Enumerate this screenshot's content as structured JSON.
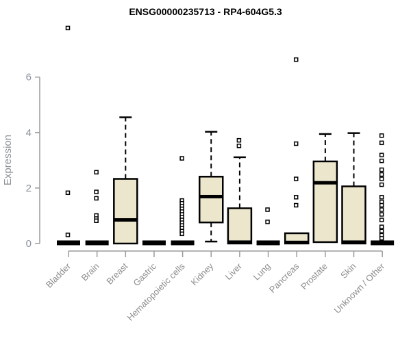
{
  "chart_data": {
    "type": "boxplot",
    "title": "ENSG00000235713 - RP4-604G5.3",
    "ylabel": "Expression",
    "xlabel": "",
    "ylim": [
      0,
      6
    ],
    "yticks": [
      0,
      2,
      4,
      6
    ],
    "grid": false,
    "legend": null,
    "categories": [
      "Bladder",
      "Brain",
      "Breast",
      "Gastric",
      "Hematopoietic cells",
      "Kidney",
      "Liver",
      "Lung",
      "Pancreas",
      "Prostate",
      "Skin",
      "Unknown / Other"
    ],
    "boxes": [
      {
        "category": "Bladder",
        "type": "flat",
        "q1": 0,
        "median": 0,
        "q3": 0,
        "whisker_low": null,
        "whisker_high": null,
        "outliers": [
          7.77,
          1.83,
          0.31
        ]
      },
      {
        "category": "Brain",
        "type": "flat",
        "q1": 0,
        "median": 0,
        "q3": 0,
        "whisker_low": null,
        "whisker_high": null,
        "outliers": [
          2.57,
          1.86,
          1.63,
          1.01,
          0.9,
          0.82
        ]
      },
      {
        "category": "Breast",
        "type": "box",
        "q1": 0,
        "median": 0.85,
        "q3": 2.33,
        "whisker_low": null,
        "whisker_high": 4.55,
        "outliers": []
      },
      {
        "category": "Gastric",
        "type": "flat",
        "q1": 0,
        "median": 0,
        "q3": 0,
        "whisker_low": null,
        "whisker_high": null,
        "outliers": []
      },
      {
        "category": "Hematopoietic cells",
        "type": "flat",
        "q1": 0,
        "median": 0,
        "q3": 0,
        "whisker_low": null,
        "whisker_high": null,
        "outliers": [
          3.07,
          1.55,
          1.45,
          1.35,
          1.25,
          1.15,
          1.05,
          0.95,
          0.85,
          0.75,
          0.65,
          0.55,
          0.45,
          0.35
        ]
      },
      {
        "category": "Kidney",
        "type": "box",
        "q1": 0.76,
        "median": 1.69,
        "q3": 2.41,
        "whisker_low": 0.07,
        "whisker_high": 4.03,
        "outliers": []
      },
      {
        "category": "Liver",
        "type": "box",
        "q1": 0,
        "median": 0.05,
        "q3": 1.27,
        "whisker_low": null,
        "whisker_high": 3.11,
        "outliers": [
          3.72,
          3.52
        ]
      },
      {
        "category": "Lung",
        "type": "flat",
        "q1": 0,
        "median": 0,
        "q3": 0,
        "whisker_low": null,
        "whisker_high": null,
        "outliers": [
          1.22,
          0.78
        ]
      },
      {
        "category": "Pancreas",
        "type": "box",
        "q1": 0,
        "median": 0.04,
        "q3": 0.37,
        "whisker_low": null,
        "whisker_high": null,
        "outliers": [
          6.63,
          3.6,
          2.33,
          1.67,
          1.38
        ]
      },
      {
        "category": "Prostate",
        "type": "box",
        "q1": 0.05,
        "median": 2.19,
        "q3": 2.96,
        "whisker_low": null,
        "whisker_high": 3.95,
        "outliers": []
      },
      {
        "category": "Skin",
        "type": "box",
        "q1": 0,
        "median": 0.05,
        "q3": 2.06,
        "whisker_low": null,
        "whisker_high": 3.98,
        "outliers": []
      },
      {
        "category": "Unknown / Other",
        "type": "flat",
        "q1": 0,
        "median": 0,
        "q3": 0,
        "whisker_low": null,
        "whisker_high": null,
        "outliers": [
          3.89,
          3.63,
          3.19,
          2.98,
          2.66,
          2.49,
          2.33,
          2.12,
          1.67,
          1.5,
          1.38,
          1.22,
          1.05,
          0.85,
          0.6,
          0.45,
          0.3,
          0.19
        ]
      }
    ],
    "colors": {
      "box_fill": "#ece7cc",
      "box_border": "#000000",
      "median": "#000000",
      "axis_line": "#9b9b9b",
      "y_tick_label": "#8a919c",
      "category_label": "#8c8c8c",
      "title": "#000000"
    }
  }
}
